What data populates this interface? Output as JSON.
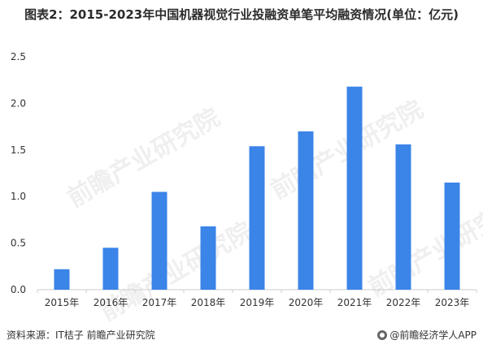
{
  "title": "图表2：2015-2023年中国机器视觉行业投融资单笔平均融资情况(单位：亿元)",
  "source": "资料来源：IT桔子 前瞻产业研究院",
  "brand": "@前瞻经济学人APP",
  "watermark": "前瞻产业研究院",
  "colors": {
    "bar": "#3b84e8",
    "axis": "#cccccc",
    "text": "#333333"
  },
  "chart_data": {
    "type": "bar",
    "categories": [
      "2015年",
      "2016年",
      "2017年",
      "2018年",
      "2019年",
      "2020年",
      "2021年",
      "2022年",
      "2023年"
    ],
    "values": [
      0.22,
      0.45,
      1.05,
      0.68,
      1.54,
      1.7,
      2.18,
      1.56,
      1.15
    ],
    "ylim": [
      0,
      2.5
    ],
    "yticks": [
      "0.0",
      "0.5",
      "1.0",
      "1.5",
      "2.0",
      "2.5"
    ],
    "grid": false,
    "legend": "none"
  }
}
